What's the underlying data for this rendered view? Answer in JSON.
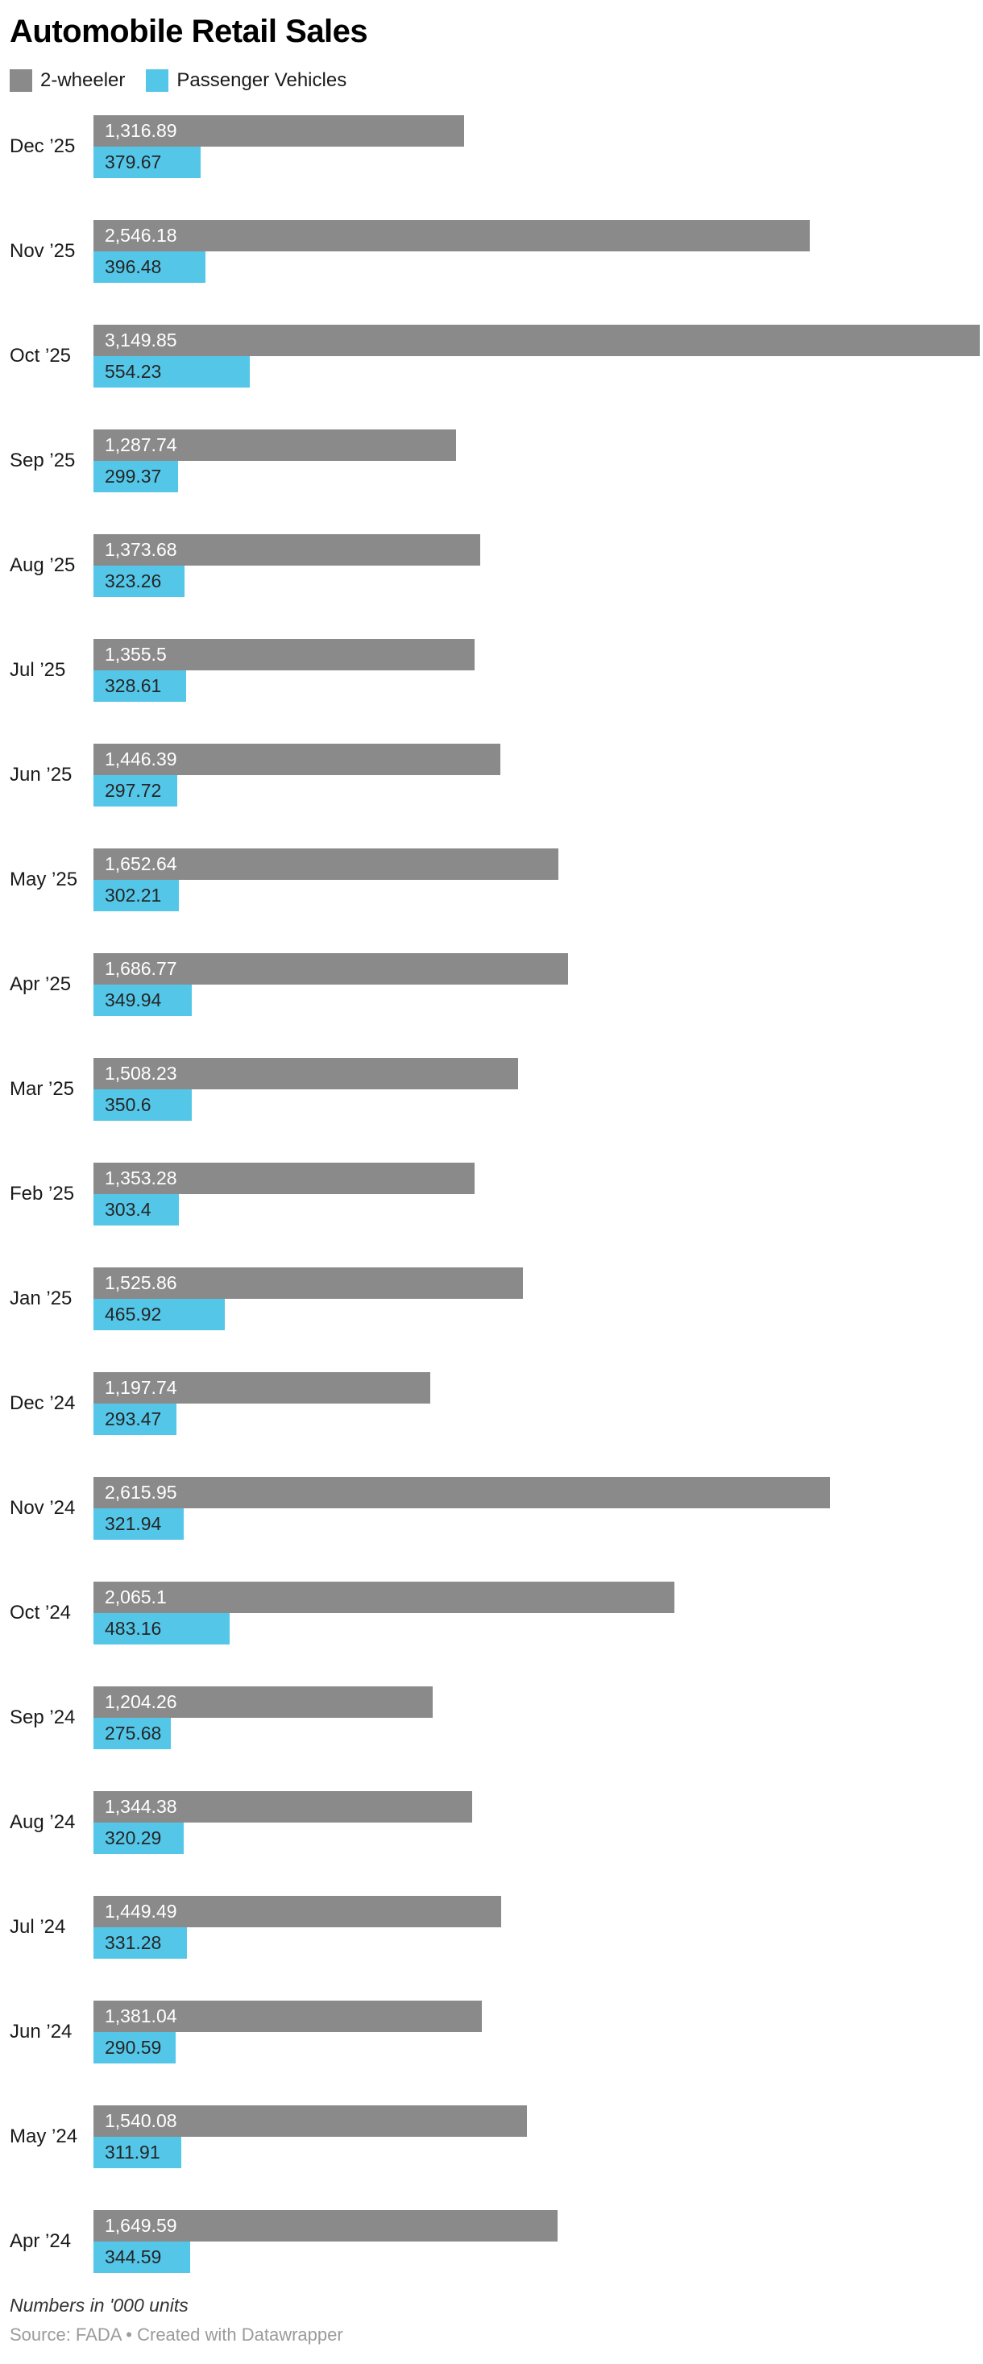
{
  "header": {
    "title": "Automobile Retail Sales"
  },
  "footer": {
    "note": "Numbers in '000 units",
    "source": "Source: FADA • Created with Datawrapper"
  },
  "chart_data": {
    "type": "bar",
    "orientation": "horizontal",
    "grouped": true,
    "title": "Automobile Retail Sales",
    "note": "Numbers in '000 units",
    "source": "FADA",
    "legend_position": "top",
    "axis": "hidden",
    "value_labels_inside_bars": true,
    "xlim": [
      0,
      3149.85
    ],
    "categories": [
      "Dec ’25",
      "Nov ’25",
      "Oct ’25",
      "Sep ’25",
      "Aug ’25",
      "Jul ’25",
      "Jun ’25",
      "May ’25",
      "Apr ’25",
      "Mar ’25",
      "Feb ’25",
      "Jan ’25",
      "Dec ’24",
      "Nov ’24",
      "Oct ’24",
      "Sep ’24",
      "Aug ’24",
      "Jul ’24",
      "Jun ’24",
      "May ’24",
      "Apr ’24"
    ],
    "series": [
      {
        "name": "2-wheeler",
        "color": "#8a8a8a",
        "label_color": "#ffffff",
        "values": [
          1316.89,
          2546.18,
          3149.85,
          1287.74,
          1373.68,
          1355.5,
          1446.39,
          1652.64,
          1686.77,
          1508.23,
          1353.28,
          1525.86,
          1197.74,
          2615.95,
          2065.1,
          1204.26,
          1344.38,
          1449.49,
          1381.04,
          1540.08,
          1649.59
        ],
        "labels": [
          "1,316.89",
          "2,546.18",
          "3,149.85",
          "1,287.74",
          "1,373.68",
          "1,355.5",
          "1,446.39",
          "1,652.64",
          "1,686.77",
          "1,508.23",
          "1,353.28",
          "1,525.86",
          "1,197.74",
          "2,615.95",
          "2,065.1",
          "1,204.26",
          "1,344.38",
          "1,449.49",
          "1,381.04",
          "1,540.08",
          "1,649.59"
        ]
      },
      {
        "name": "Passenger Vehicles",
        "color": "#54c7e9",
        "label_color": "#262626",
        "values": [
          379.67,
          396.48,
          554.23,
          299.37,
          323.26,
          328.61,
          297.72,
          302.21,
          349.94,
          350.6,
          303.4,
          465.92,
          293.47,
          321.94,
          483.16,
          275.68,
          320.29,
          331.28,
          290.59,
          311.91,
          344.59
        ],
        "labels": [
          "379.67",
          "396.48",
          "554.23",
          "299.37",
          "323.26",
          "328.61",
          "297.72",
          "302.21",
          "349.94",
          "350.6",
          "303.4",
          "465.92",
          "293.47",
          "321.94",
          "483.16",
          "275.68",
          "320.29",
          "331.28",
          "290.59",
          "311.91",
          "344.59"
        ]
      }
    ]
  }
}
